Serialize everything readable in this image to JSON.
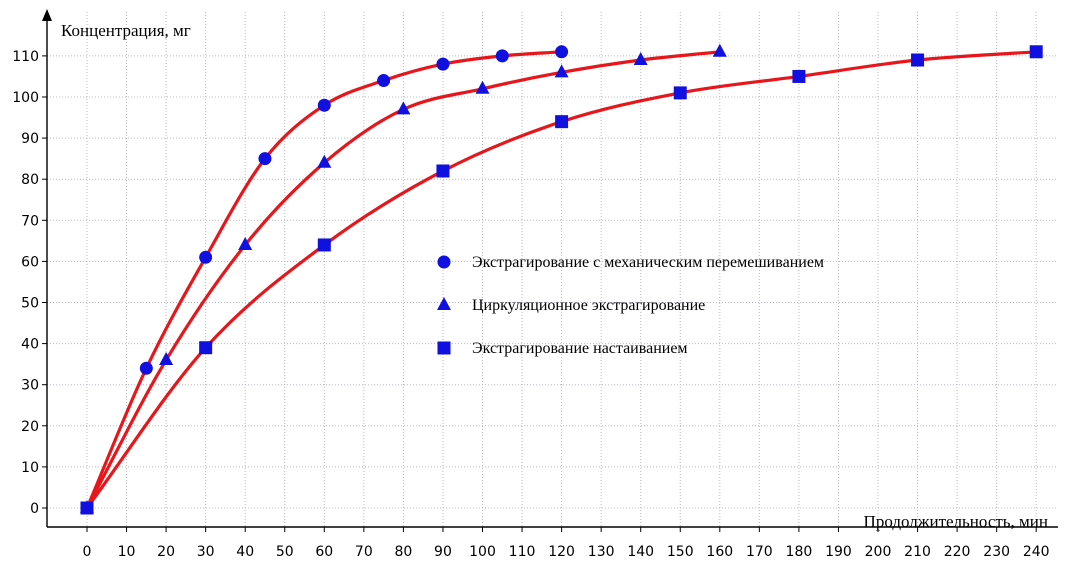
{
  "chart_data": {
    "type": "line",
    "ylabel": "Концентрация, мг",
    "xlabel": "Продолжительность, мин",
    "xlim": [
      0,
      240
    ],
    "ylim": [
      0,
      110
    ],
    "x_ticks": [
      0,
      10,
      20,
      30,
      40,
      50,
      60,
      70,
      80,
      90,
      100,
      110,
      120,
      130,
      140,
      150,
      160,
      170,
      180,
      190,
      200,
      210,
      220,
      230,
      240
    ],
    "y_ticks": [
      0,
      10,
      20,
      30,
      40,
      50,
      60,
      70,
      80,
      90,
      100,
      110
    ],
    "grid": true,
    "legend_position": "center-right",
    "line_color": "#e8161b",
    "marker_color": "#1010e0",
    "series": [
      {
        "name": "Экстрагирование с механическим перемешиванием",
        "marker": "circle",
        "x": [
          0,
          15,
          30,
          45,
          60,
          75,
          90,
          105,
          120
        ],
        "y": [
          0,
          34,
          61,
          85,
          98,
          104,
          108,
          110,
          111
        ]
      },
      {
        "name": "Циркуляционное экстрагирование",
        "marker": "triangle",
        "x": [
          0,
          20,
          40,
          60,
          80,
          100,
          120,
          140,
          160
        ],
        "y": [
          0,
          36,
          64,
          84,
          97,
          102,
          106,
          109,
          111
        ]
      },
      {
        "name": "Экстрагирование настаиванием",
        "marker": "square",
        "x": [
          0,
          30,
          60,
          90,
          120,
          150,
          180,
          210,
          240
        ],
        "y": [
          0,
          39,
          64,
          82,
          94,
          101,
          105,
          109,
          111
        ]
      }
    ]
  }
}
